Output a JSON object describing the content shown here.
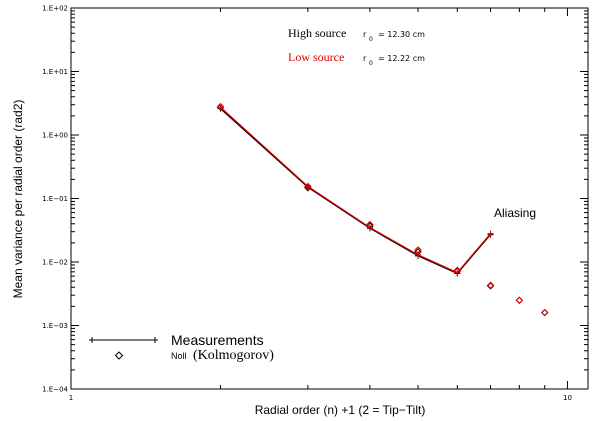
{
  "chart_data": {
    "type": "line",
    "xscale": "log",
    "yscale": "log",
    "xlim": [
      1,
      11
    ],
    "ylim": [
      0.0001,
      100
    ],
    "xlabel": "Radial order  (n) +1 (2 = Tip−Tilt)",
    "ylabel": "Mean variance per radial order (rad2)",
    "x_tick_labels": [
      "1",
      "10"
    ],
    "y_ticks": [
      {
        "value": 100,
        "label": "1.E+02"
      },
      {
        "value": 10,
        "label": "1.E+01"
      },
      {
        "value": 1,
        "label": "1.E+00"
      },
      {
        "value": 0.1,
        "label": "1.E−01"
      },
      {
        "value": 0.01,
        "label": "1.E−02"
      },
      {
        "value": 0.001,
        "label": "1.E−03"
      },
      {
        "value": 0.0001,
        "label": "1.E−04"
      }
    ],
    "series": [
      {
        "name": "High source",
        "color": "#000000",
        "x": [
          2,
          3,
          4,
          5,
          6,
          7
        ],
        "y": [
          2.6,
          0.15,
          0.034,
          0.0125,
          0.0066,
          0.027
        ],
        "noll_x": [
          2,
          3,
          4,
          5,
          6,
          7,
          8,
          9
        ],
        "noll_y": [
          2.75,
          0.148,
          0.037,
          0.0145,
          0.0072,
          0.0042,
          0.0025,
          0.0016
        ]
      },
      {
        "name": "Low source",
        "color": "#dd0000",
        "x": [
          2,
          3,
          4,
          5,
          6,
          7
        ],
        "y": [
          2.75,
          0.155,
          0.035,
          0.013,
          0.0068,
          0.028
        ],
        "noll_x": [
          2,
          3,
          4,
          5,
          6,
          7,
          8,
          9
        ],
        "noll_y": [
          2.8,
          0.155,
          0.039,
          0.0155,
          0.0074,
          0.0043,
          0.0025,
          0.0016
        ]
      }
    ],
    "annotations": {
      "high_source": {
        "label": "High source",
        "r0_symbol": "r",
        "r0_sub": "0",
        "r0_value": "= 12.30 cm",
        "color": "#000000"
      },
      "low_source": {
        "label": "Low source",
        "r0_symbol": "r",
        "r0_sub": "0",
        "r0_value": "= 12.22 cm",
        "color": "#dd0000"
      },
      "aliasing": "Aliasing"
    },
    "legend": {
      "measurements": "Measurements",
      "noll_small": "Noll",
      "noll_big": "(Kolmogorov)",
      "placement": "bottom-left"
    }
  }
}
